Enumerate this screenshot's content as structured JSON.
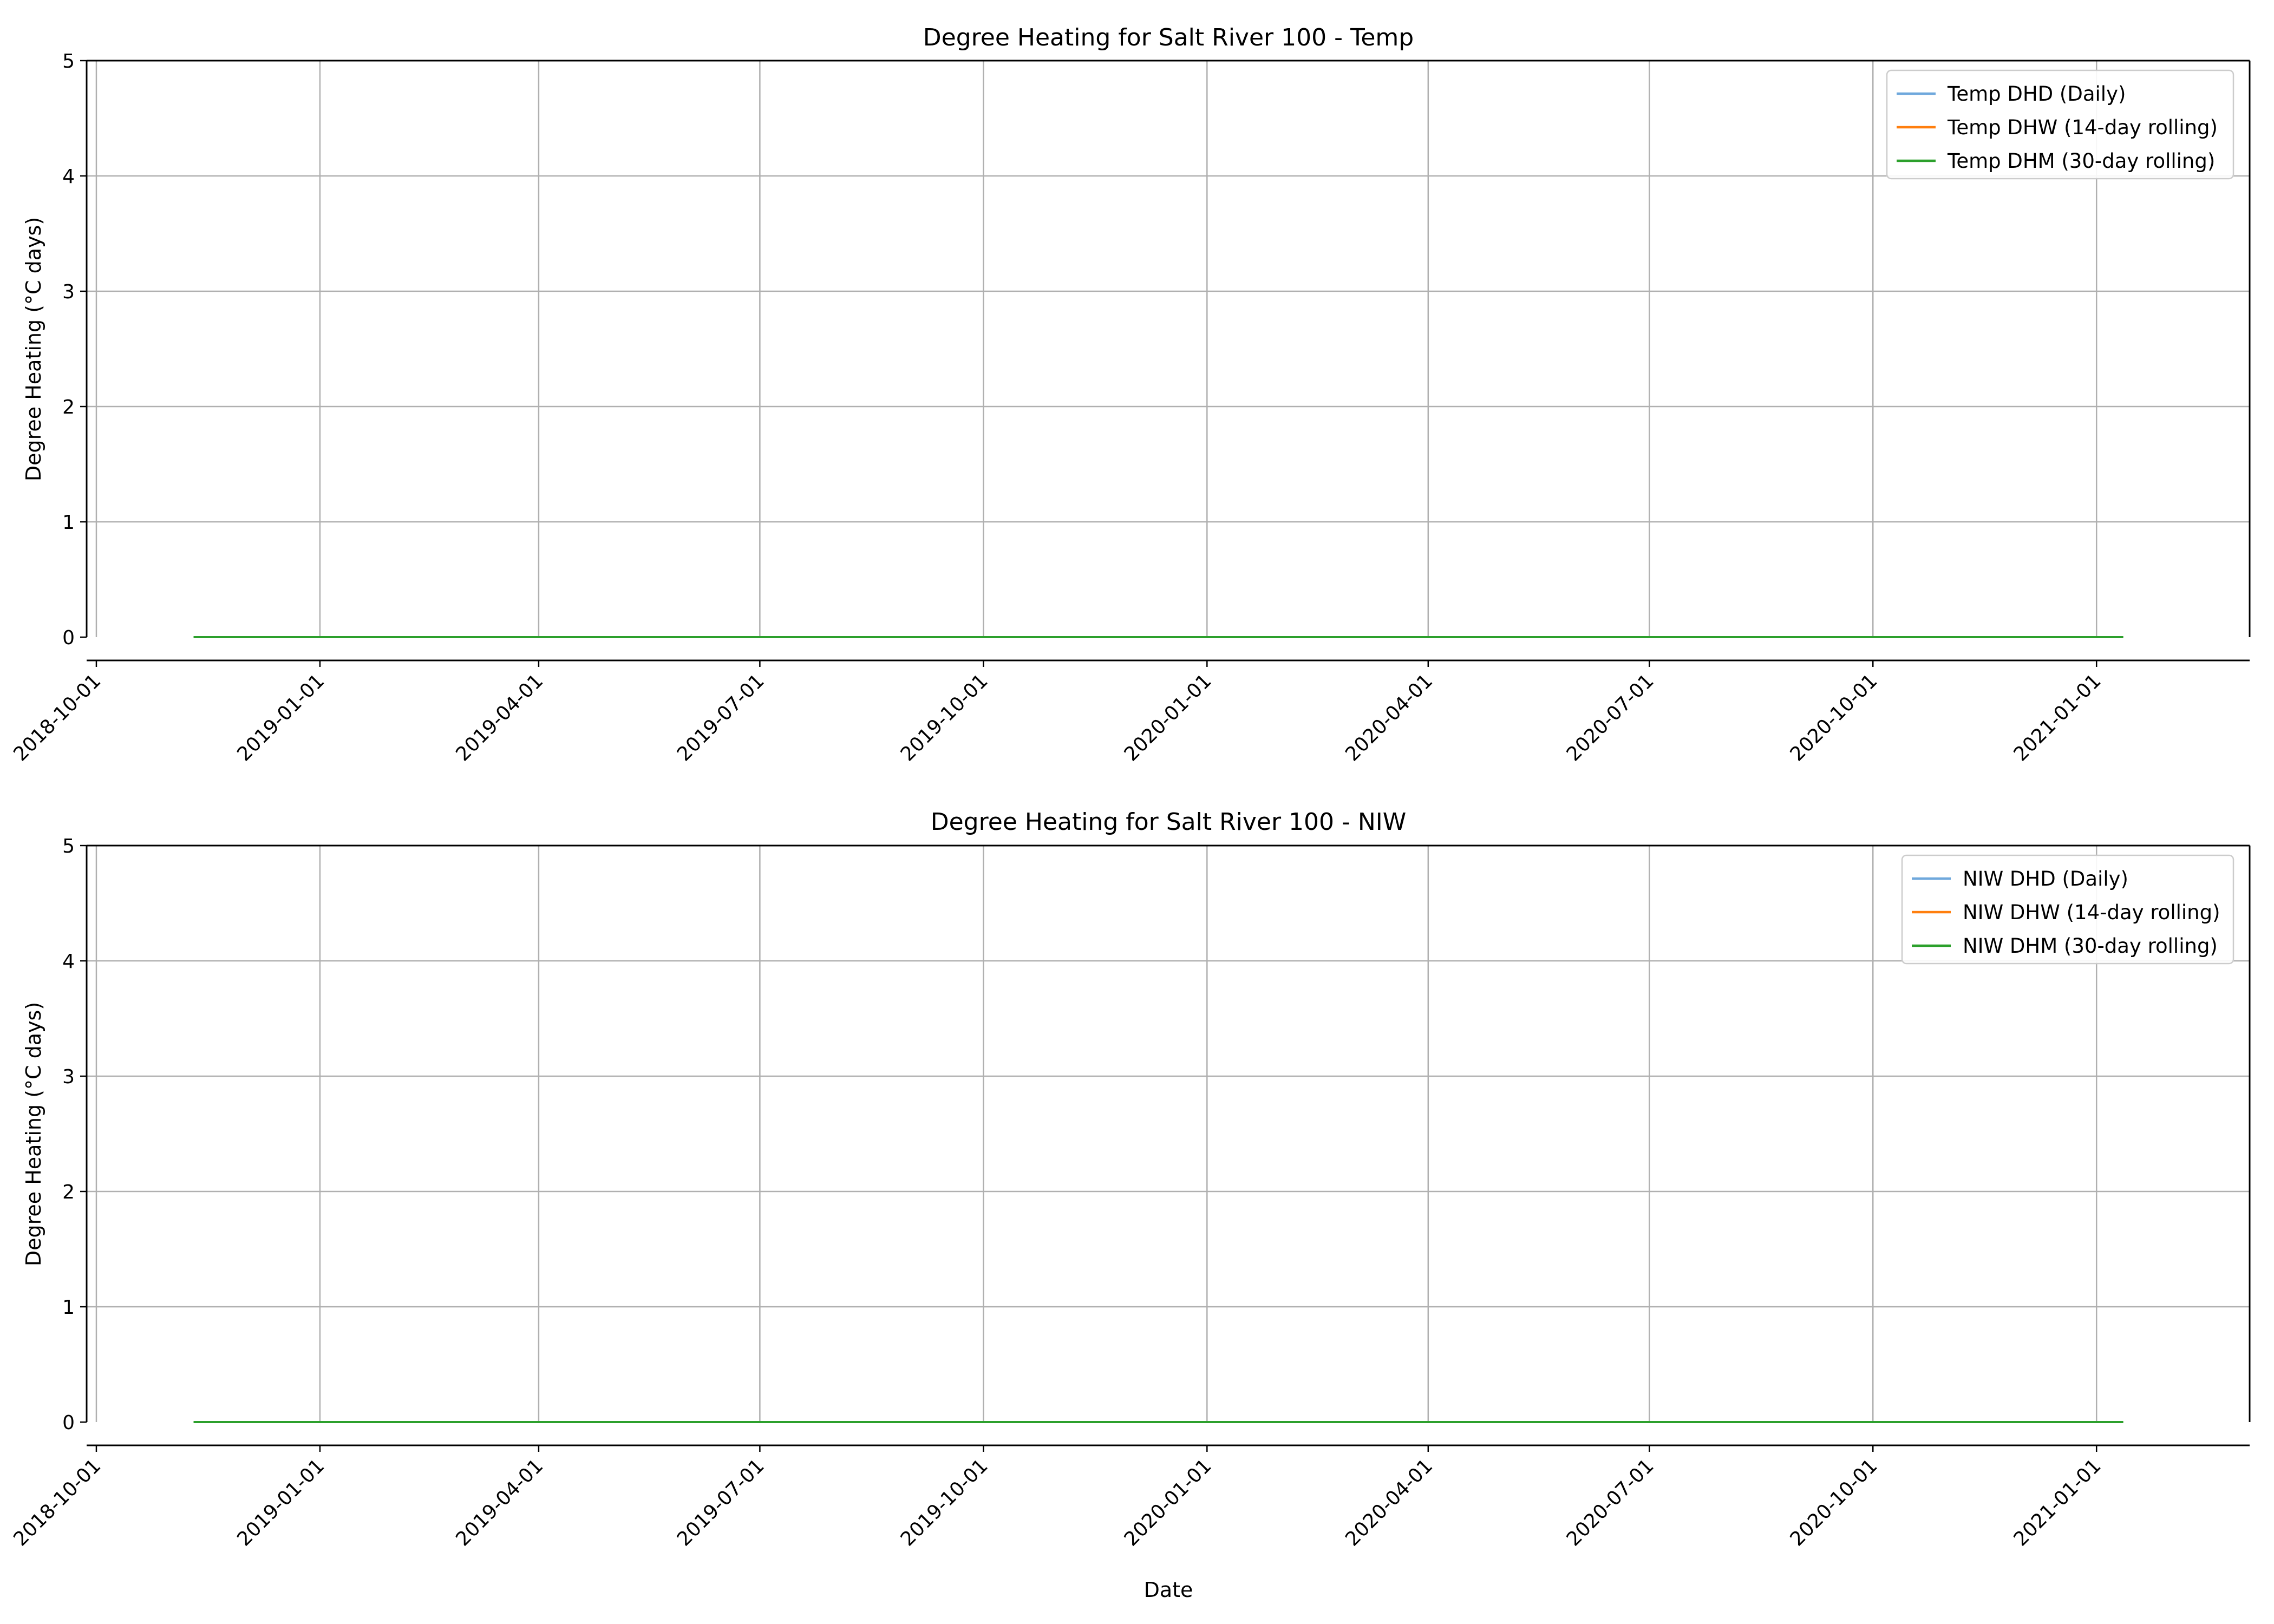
{
  "chart_data": [
    {
      "type": "line",
      "title": "Degree Heating for Salt River 100 - Temp",
      "xlabel": "",
      "ylabel": "Degree Heating (°C days)",
      "ylim": [
        0,
        5
      ],
      "yticks": [
        "0",
        "1",
        "2",
        "3",
        "4",
        "5"
      ],
      "xlim": [
        "2018-09-27",
        "2021-03-05"
      ],
      "xticks": [
        "2018-10-01",
        "2019-01-01",
        "2019-04-01",
        "2019-07-01",
        "2019-10-01",
        "2020-01-01",
        "2020-04-01",
        "2020-07-01",
        "2020-10-01",
        "2021-01-01"
      ],
      "grid": true,
      "legend_position": "top-right",
      "series": [
        {
          "name": "Temp DHD (Daily)",
          "color": "#6fa8dc",
          "x": [
            "2018-11-10",
            "2021-01-12"
          ],
          "values": [
            0,
            0
          ]
        },
        {
          "name": "Temp DHW (14-day rolling)",
          "color": "#ff7f0e",
          "x": [
            "2018-11-10",
            "2021-01-12"
          ],
          "values": [
            0,
            0
          ]
        },
        {
          "name": "Temp DHM (30-day rolling)",
          "color": "#2ca02c",
          "x": [
            "2018-11-10",
            "2021-01-12"
          ],
          "values": [
            0,
            0
          ]
        }
      ]
    },
    {
      "type": "line",
      "title": "Degree Heating for Salt River 100 - NIW",
      "xlabel": "Date",
      "ylabel": "Degree Heating (°C days)",
      "ylim": [
        0,
        5
      ],
      "yticks": [
        "0",
        "1",
        "2",
        "3",
        "4",
        "5"
      ],
      "xlim": [
        "2018-09-27",
        "2021-03-05"
      ],
      "xticks": [
        "2018-10-01",
        "2019-01-01",
        "2019-04-01",
        "2019-07-01",
        "2019-10-01",
        "2020-01-01",
        "2020-04-01",
        "2020-07-01",
        "2020-10-01",
        "2021-01-01"
      ],
      "grid": true,
      "legend_position": "top-right",
      "series": [
        {
          "name": "NIW DHD (Daily)",
          "color": "#6fa8dc",
          "x": [
            "2018-11-10",
            "2021-01-12"
          ],
          "values": [
            0,
            0
          ]
        },
        {
          "name": "NIW DHW (14-day rolling)",
          "color": "#ff7f0e",
          "x": [
            "2018-11-10",
            "2021-01-12"
          ],
          "values": [
            0,
            0
          ]
        },
        {
          "name": "NIW DHM (30-day rolling)",
          "color": "#2ca02c",
          "x": [
            "2018-11-10",
            "2021-01-12"
          ],
          "values": [
            0,
            0
          ]
        }
      ]
    }
  ]
}
